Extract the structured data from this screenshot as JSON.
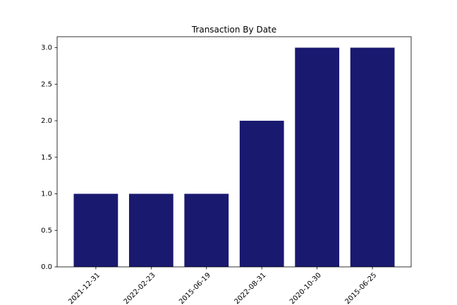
{
  "chart_data": {
    "type": "bar",
    "title": "Transaction By Date",
    "xlabel": "",
    "ylabel": "",
    "categories": [
      "2021-12-31",
      "2022-02-23",
      "2015-06-19",
      "2022-08-31",
      "2020-10-30",
      "2015-06-25"
    ],
    "values": [
      1,
      1,
      1,
      2,
      3,
      3
    ],
    "ylim": [
      0,
      3.15
    ],
    "yticks": [
      "0.0",
      "0.5",
      "1.0",
      "1.5",
      "2.0",
      "2.5",
      "3.0"
    ],
    "bar_color": "#191970",
    "grid": false,
    "legend": "none"
  }
}
